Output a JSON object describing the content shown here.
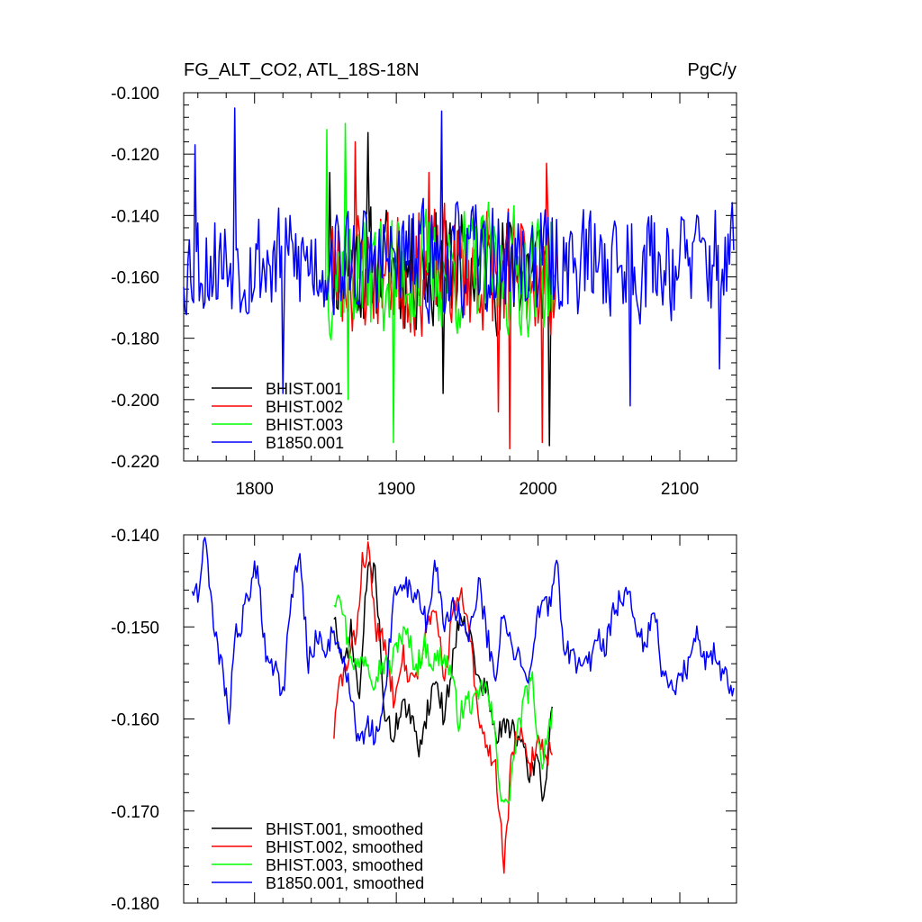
{
  "chart_data": [
    {
      "type": "line",
      "title": "FG_ALT_CO2, ATL_18S-18N",
      "units": "PgC/y",
      "xlabel": "",
      "ylabel": "",
      "xlim": [
        1750,
        2140
      ],
      "ylim": [
        -0.22,
        -0.1
      ],
      "xticks": [
        1800,
        1900,
        2000,
        2100
      ],
      "xtick_labels": [
        "1800",
        "1900",
        "2000",
        "2100"
      ],
      "yticks": [
        -0.22,
        -0.2,
        -0.18,
        -0.16,
        -0.14,
        -0.12,
        -0.1
      ],
      "ytick_labels": [
        "-0.220",
        "-0.200",
        "-0.180",
        "-0.160",
        "-0.140",
        "-0.120",
        "-0.100"
      ],
      "legend_position": "bottom-left",
      "series": [
        {
          "name": "BHIST.001",
          "color": "#000000",
          "start": 1850,
          "end": 2010,
          "mean": -0.157,
          "amp": 0.018,
          "seed": 11,
          "peaks": [
            [
              1853,
              -0.126
            ],
            [
              1880,
              -0.113
            ],
            [
              1933,
              -0.198
            ],
            [
              2008,
              -0.215
            ]
          ]
        },
        {
          "name": "BHIST.002",
          "color": "#ff0000",
          "start": 1850,
          "end": 2013,
          "mean": -0.158,
          "amp": 0.019,
          "seed": 23,
          "peaks": [
            [
              1871,
              -0.116
            ],
            [
              1923,
              -0.126
            ],
            [
              1972,
              -0.204
            ],
            [
              1980,
              -0.216
            ],
            [
              2003,
              -0.214
            ],
            [
              2006,
              -0.123
            ]
          ]
        },
        {
          "name": "BHIST.003",
          "color": "#00ff00",
          "start": 1850,
          "end": 2013,
          "mean": -0.158,
          "amp": 0.019,
          "seed": 37,
          "peaks": [
            [
              1851,
              -0.112
            ],
            [
              1864,
              -0.11
            ],
            [
              1898,
              -0.214
            ],
            [
              1866,
              -0.2
            ]
          ]
        },
        {
          "name": "B1850.001",
          "color": "#0000ff",
          "start": 1750,
          "end": 2138,
          "mean": -0.155,
          "amp": 0.017,
          "seed": 53,
          "peaks": [
            [
              1786,
              -0.105
            ],
            [
              1932,
              -0.106
            ],
            [
              1820,
              -0.198
            ],
            [
              2065,
              -0.202
            ],
            [
              2128,
              -0.19
            ],
            [
              1758,
              -0.117
            ]
          ]
        }
      ]
    },
    {
      "type": "line",
      "title": "",
      "xlabel": "",
      "ylabel": "",
      "xlim": [
        1750,
        2140
      ],
      "ylim": [
        -0.18,
        -0.14
      ],
      "xticks": [
        1800,
        1900,
        2000,
        2100
      ],
      "yticks": [
        -0.18,
        -0.17,
        -0.16,
        -0.15,
        -0.14
      ],
      "ytick_labels": [
        "-0.180",
        "-0.170",
        "-0.160",
        "-0.150",
        "-0.140"
      ],
      "legend_position": "bottom-left",
      "series": [
        {
          "name": "BHIST.001, smoothed",
          "color": "#000000",
          "start": 1856,
          "end": 2010,
          "seed": 71,
          "anchors": [
            [
              1856,
              -0.1485
            ],
            [
              1862,
              -0.155
            ],
            [
              1868,
              -0.1505
            ],
            [
              1874,
              -0.158
            ],
            [
              1880,
              -0.143
            ],
            [
              1886,
              -0.145
            ],
            [
              1892,
              -0.16
            ],
            [
              1898,
              -0.162
            ],
            [
              1904,
              -0.158
            ],
            [
              1910,
              -0.16
            ],
            [
              1916,
              -0.163
            ],
            [
              1922,
              -0.159
            ],
            [
              1928,
              -0.1555
            ],
            [
              1934,
              -0.16
            ],
            [
              1940,
              -0.153
            ],
            [
              1946,
              -0.148
            ],
            [
              1952,
              -0.151
            ],
            [
              1958,
              -0.156
            ],
            [
              1964,
              -0.157
            ],
            [
              1970,
              -0.162
            ],
            [
              1976,
              -0.161
            ],
            [
              1982,
              -0.1605
            ],
            [
              1988,
              -0.163
            ],
            [
              1994,
              -0.166
            ],
            [
              2000,
              -0.164
            ],
            [
              2004,
              -0.169
            ],
            [
              2010,
              -0.158
            ]
          ]
        },
        {
          "name": "BHIST.002, smoothed",
          "color": "#ff0000",
          "start": 1856,
          "end": 2010,
          "seed": 83,
          "anchors": [
            [
              1856,
              -0.1615
            ],
            [
              1860,
              -0.156
            ],
            [
              1866,
              -0.154
            ],
            [
              1872,
              -0.1505
            ],
            [
              1876,
              -0.143
            ],
            [
              1880,
              -0.1415
            ],
            [
              1886,
              -0.1505
            ],
            [
              1892,
              -0.152
            ],
            [
              1898,
              -0.1575
            ],
            [
              1904,
              -0.1525
            ],
            [
              1910,
              -0.156
            ],
            [
              1916,
              -0.154
            ],
            [
              1922,
              -0.15
            ],
            [
              1928,
              -0.1485
            ],
            [
              1934,
              -0.156
            ],
            [
              1940,
              -0.148
            ],
            [
              1946,
              -0.147
            ],
            [
              1952,
              -0.151
            ],
            [
              1958,
              -0.1605
            ],
            [
              1964,
              -0.163
            ],
            [
              1970,
              -0.165
            ],
            [
              1976,
              -0.176
            ],
            [
              1982,
              -0.163
            ],
            [
              1988,
              -0.162
            ],
            [
              1994,
              -0.1655
            ],
            [
              2000,
              -0.162
            ],
            [
              2006,
              -0.164
            ],
            [
              2010,
              -0.163
            ]
          ]
        },
        {
          "name": "BHIST.003, smoothed",
          "color": "#00ff00",
          "start": 1856,
          "end": 2010,
          "seed": 97,
          "anchors": [
            [
              1856,
              -0.147
            ],
            [
              1860,
              -0.1455
            ],
            [
              1866,
              -0.152
            ],
            [
              1872,
              -0.1545
            ],
            [
              1878,
              -0.153
            ],
            [
              1884,
              -0.1555
            ],
            [
              1890,
              -0.154
            ],
            [
              1896,
              -0.1545
            ],
            [
              1902,
              -0.151
            ],
            [
              1908,
              -0.151
            ],
            [
              1914,
              -0.1545
            ],
            [
              1920,
              -0.152
            ],
            [
              1926,
              -0.154
            ],
            [
              1932,
              -0.153
            ],
            [
              1938,
              -0.1545
            ],
            [
              1944,
              -0.16
            ],
            [
              1950,
              -0.158
            ],
            [
              1956,
              -0.1585
            ],
            [
              1962,
              -0.156
            ],
            [
              1968,
              -0.16
            ],
            [
              1974,
              -0.168
            ],
            [
              1978,
              -0.17
            ],
            [
              1984,
              -0.163
            ],
            [
              1990,
              -0.158
            ],
            [
              1996,
              -0.156
            ],
            [
              2002,
              -0.165
            ],
            [
              2006,
              -0.162
            ],
            [
              2010,
              -0.159
            ]
          ]
        },
        {
          "name": "B1850.001, smoothed",
          "color": "#0000ff",
          "start": 1756,
          "end": 2138,
          "seed": 109,
          "anchors": [
            [
              1756,
              -0.1455
            ],
            [
              1760,
              -0.146
            ],
            [
              1764,
              -0.142
            ],
            [
              1766,
              -0.1405
            ],
            [
              1770,
              -0.1485
            ],
            [
              1774,
              -0.153
            ],
            [
              1778,
              -0.155
            ],
            [
              1782,
              -0.16
            ],
            [
              1786,
              -0.151
            ],
            [
              1790,
              -0.1505
            ],
            [
              1796,
              -0.146
            ],
            [
              1802,
              -0.143
            ],
            [
              1808,
              -0.1535
            ],
            [
              1814,
              -0.154
            ],
            [
              1820,
              -0.1575
            ],
            [
              1826,
              -0.146
            ],
            [
              1832,
              -0.1425
            ],
            [
              1838,
              -0.154
            ],
            [
              1844,
              -0.151
            ],
            [
              1850,
              -0.1525
            ],
            [
              1856,
              -0.1505
            ],
            [
              1862,
              -0.153
            ],
            [
              1868,
              -0.1575
            ],
            [
              1874,
              -0.163
            ],
            [
              1880,
              -0.161
            ],
            [
              1886,
              -0.162
            ],
            [
              1892,
              -0.158
            ],
            [
              1898,
              -0.147
            ],
            [
              1904,
              -0.146
            ],
            [
              1910,
              -0.1455
            ],
            [
              1916,
              -0.147
            ],
            [
              1922,
              -0.15
            ],
            [
              1928,
              -0.143
            ],
            [
              1934,
              -0.15
            ],
            [
              1940,
              -0.1475
            ],
            [
              1946,
              -0.149
            ],
            [
              1952,
              -0.151
            ],
            [
              1958,
              -0.145
            ],
            [
              1964,
              -0.151
            ],
            [
              1970,
              -0.155
            ],
            [
              1976,
              -0.148
            ],
            [
              1982,
              -0.153
            ],
            [
              1988,
              -0.1535
            ],
            [
              1994,
              -0.155
            ],
            [
              2000,
              -0.149
            ],
            [
              2006,
              -0.148
            ],
            [
              2010,
              -0.146
            ],
            [
              2014,
              -0.1435
            ],
            [
              2018,
              -0.152
            ],
            [
              2024,
              -0.153
            ],
            [
              2030,
              -0.155
            ],
            [
              2036,
              -0.154
            ],
            [
              2042,
              -0.151
            ],
            [
              2048,
              -0.152
            ],
            [
              2054,
              -0.148
            ],
            [
              2060,
              -0.1465
            ],
            [
              2064,
              -0.1455
            ],
            [
              2070,
              -0.15
            ],
            [
              2076,
              -0.152
            ],
            [
              2082,
              -0.1475
            ],
            [
              2088,
              -0.1555
            ],
            [
              2094,
              -0.157
            ],
            [
              2100,
              -0.156
            ],
            [
              2106,
              -0.154
            ],
            [
              2112,
              -0.151
            ],
            [
              2118,
              -0.1535
            ],
            [
              2124,
              -0.1525
            ],
            [
              2130,
              -0.155
            ],
            [
              2136,
              -0.157
            ],
            [
              2138,
              -0.1575
            ]
          ]
        }
      ]
    }
  ]
}
